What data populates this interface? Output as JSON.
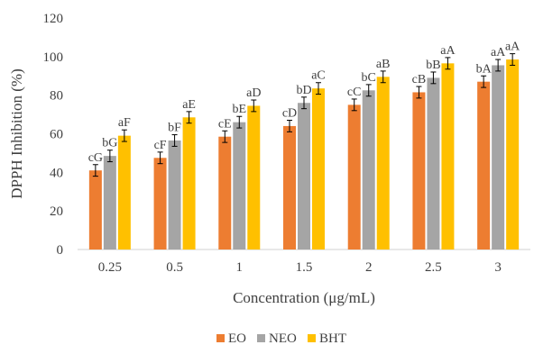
{
  "chart_data": {
    "type": "bar",
    "xlabel": "Concentration (μg/mL)",
    "ylabel": "DPPH Inhibition (%)",
    "ylim": [
      0,
      120
    ],
    "yticks": [
      "0",
      "20",
      "40",
      "60",
      "80",
      "100",
      "120"
    ],
    "categories": [
      "0.25",
      "0.5",
      "1",
      "1.5",
      "2",
      "2.5",
      "3"
    ],
    "grid": false,
    "legend_position": "bottom",
    "series": [
      {
        "name": "EO",
        "color": "#ED7D31",
        "values": [
          41,
          47.5,
          58.5,
          64,
          75,
          81.5,
          87
        ],
        "errors": [
          3,
          3,
          3,
          3,
          3,
          3,
          3
        ],
        "labels": [
          "cG",
          "cF",
          "cE",
          "cD",
          "cC",
          "cB",
          "bA"
        ]
      },
      {
        "name": "NEO",
        "color": "#A5A5A5",
        "values": [
          48.5,
          56.5,
          66,
          76,
          82.5,
          89,
          95.5
        ],
        "errors": [
          3,
          3,
          3,
          3,
          3,
          3,
          3
        ],
        "labels": [
          "bG",
          "bF",
          "bE",
          "bD",
          "bC",
          "bB",
          "aA"
        ]
      },
      {
        "name": "BHT",
        "color": "#FFC000",
        "values": [
          59,
          68.5,
          74.5,
          83.5,
          89.5,
          96.5,
          98.5
        ],
        "errors": [
          3,
          3,
          3,
          3,
          3,
          3,
          3
        ],
        "labels": [
          "aF",
          "aE",
          "aD",
          "aC",
          "aB",
          "aA",
          "aA"
        ]
      }
    ]
  }
}
